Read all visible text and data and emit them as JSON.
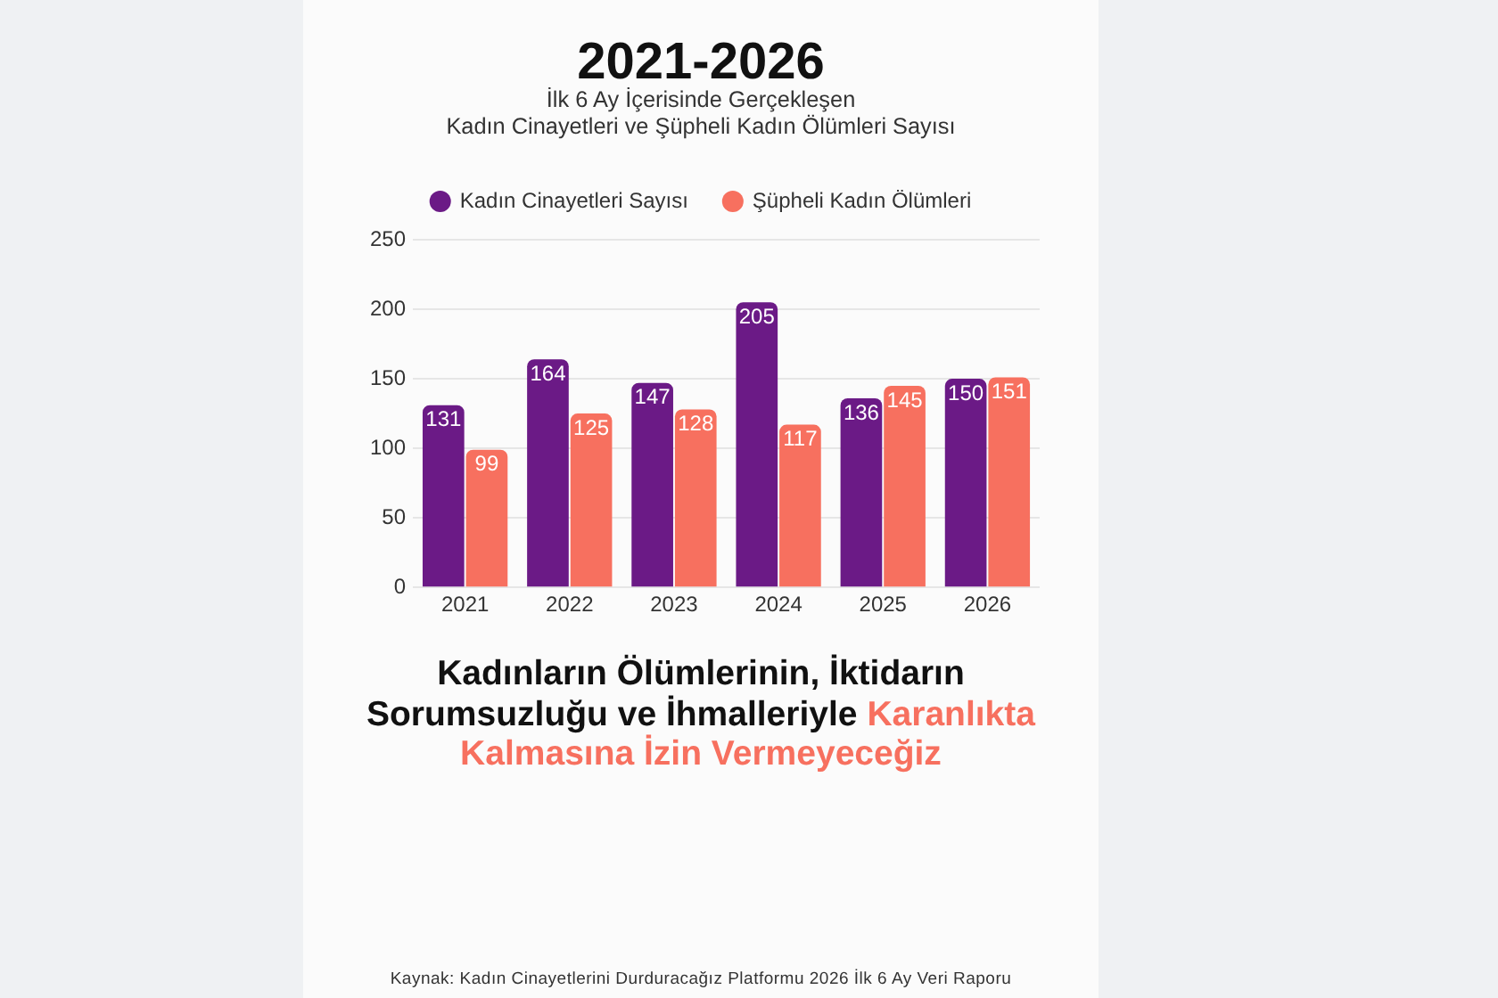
{
  "chart_data": {
    "type": "bar",
    "title": "2021-2026",
    "subtitle": "İlk 6 Ay İçerisinde Gerçekleşen\nKadın Cinayetleri ve Şüpheli Kadın Ölümleri Sayısı",
    "categories": [
      "2021",
      "2022",
      "2023",
      "2024",
      "2025",
      "2026"
    ],
    "series": [
      {
        "name": "Kadın Cinayetleri Sayısı",
        "color": "#6b1a86",
        "values": [
          131,
          164,
          147,
          205,
          136,
          150
        ]
      },
      {
        "name": "Şüpheli Kadın Ölümleri",
        "color": "#f7705f",
        "values": [
          99,
          125,
          128,
          117,
          145,
          151
        ]
      }
    ],
    "ylim": [
      0,
      250
    ],
    "yticks": [
      0,
      50,
      100,
      150,
      200,
      250
    ],
    "grid": "y",
    "legend": "top",
    "data_labels": true,
    "annotations": [
      "Kadınların Ölümlerinin, İktidarın Sorumsuzluğu ve İhmalleriyle",
      "Karanlıkta Kalmasına İzin Vermeyeceğiz",
      "Kaynak: Kadın Cinayetlerini Durduracağız Platformu 2026 İlk 6 Ay Veri Raporu"
    ]
  }
}
